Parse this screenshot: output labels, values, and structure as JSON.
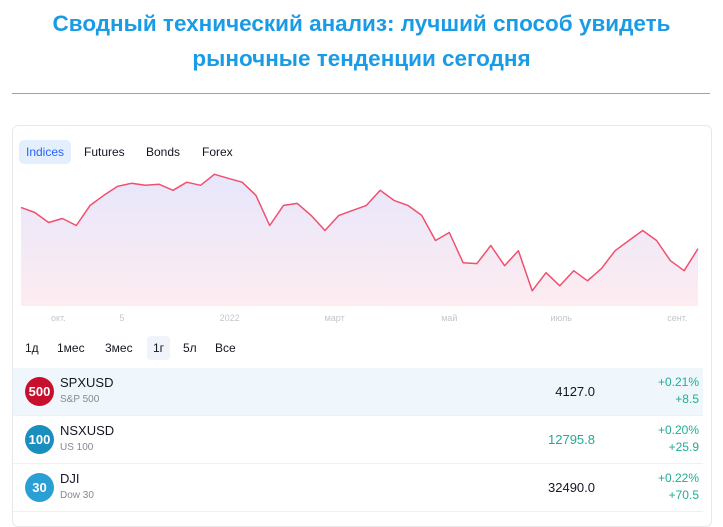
{
  "header": {
    "title": "Сводный технический анализ: лучший способ увидеть рыночные тенденции сегодня"
  },
  "tabs": {
    "items": [
      "Indices",
      "Futures",
      "Bonds",
      "Forex"
    ],
    "selected": 0
  },
  "chart_data": {
    "type": "line",
    "color": "#f0506e",
    "values": [
      4446,
      4396,
      4298,
      4337,
      4268,
      4465,
      4564,
      4652,
      4682,
      4662,
      4672,
      4613,
      4692,
      4662,
      4770,
      4731,
      4692,
      4564,
      4268,
      4465,
      4485,
      4367,
      4219,
      4367,
      4416,
      4465,
      4613,
      4514,
      4465,
      4367,
      4121,
      4200,
      3904,
      3895,
      4072,
      3875,
      4022,
      3629,
      3806,
      3678,
      3826,
      3727,
      3845,
      4022,
      4121,
      4219,
      4121,
      3924,
      3826,
      4042
    ],
    "xlim": [
      0,
      49
    ],
    "ylim": [
      3480,
      4900
    ],
    "xticks": [
      {
        "value": 2.7,
        "label": "окт."
      },
      {
        "value": 7.3,
        "label": "5"
      },
      {
        "value": 15.1,
        "label": "2022"
      },
      {
        "value": 22.7,
        "label": "март"
      },
      {
        "value": 31,
        "label": "май"
      },
      {
        "value": 39.1,
        "label": "июль"
      },
      {
        "value": 47.5,
        "label": "сент."
      }
    ]
  },
  "ranges": {
    "items": [
      "1д",
      "1мес",
      "3мес",
      "1г",
      "5л",
      "Все"
    ],
    "selected": 3
  },
  "table": {
    "rows": [
      {
        "badge": "500",
        "badge_color": "#c8102e",
        "symbol": "SPXUSD",
        "name": "S&P 500",
        "price": "4127.0",
        "price_color": "#131722",
        "change_pct": "+0.21%",
        "change": "+8.5"
      },
      {
        "badge": "100",
        "badge_color": "#1a8fbf",
        "symbol": "NSXUSD",
        "name": "US 100",
        "price": "12795.8",
        "price_color": "#22ab94",
        "change_pct": "+0.20%",
        "change": "+25.9"
      },
      {
        "badge": "30",
        "badge_color": "#2a9fd6",
        "symbol": "DJI",
        "name": "Dow 30",
        "price": "32490.0",
        "price_color": "#131722",
        "change_pct": "+0.22%",
        "change": "+70.5"
      }
    ]
  }
}
